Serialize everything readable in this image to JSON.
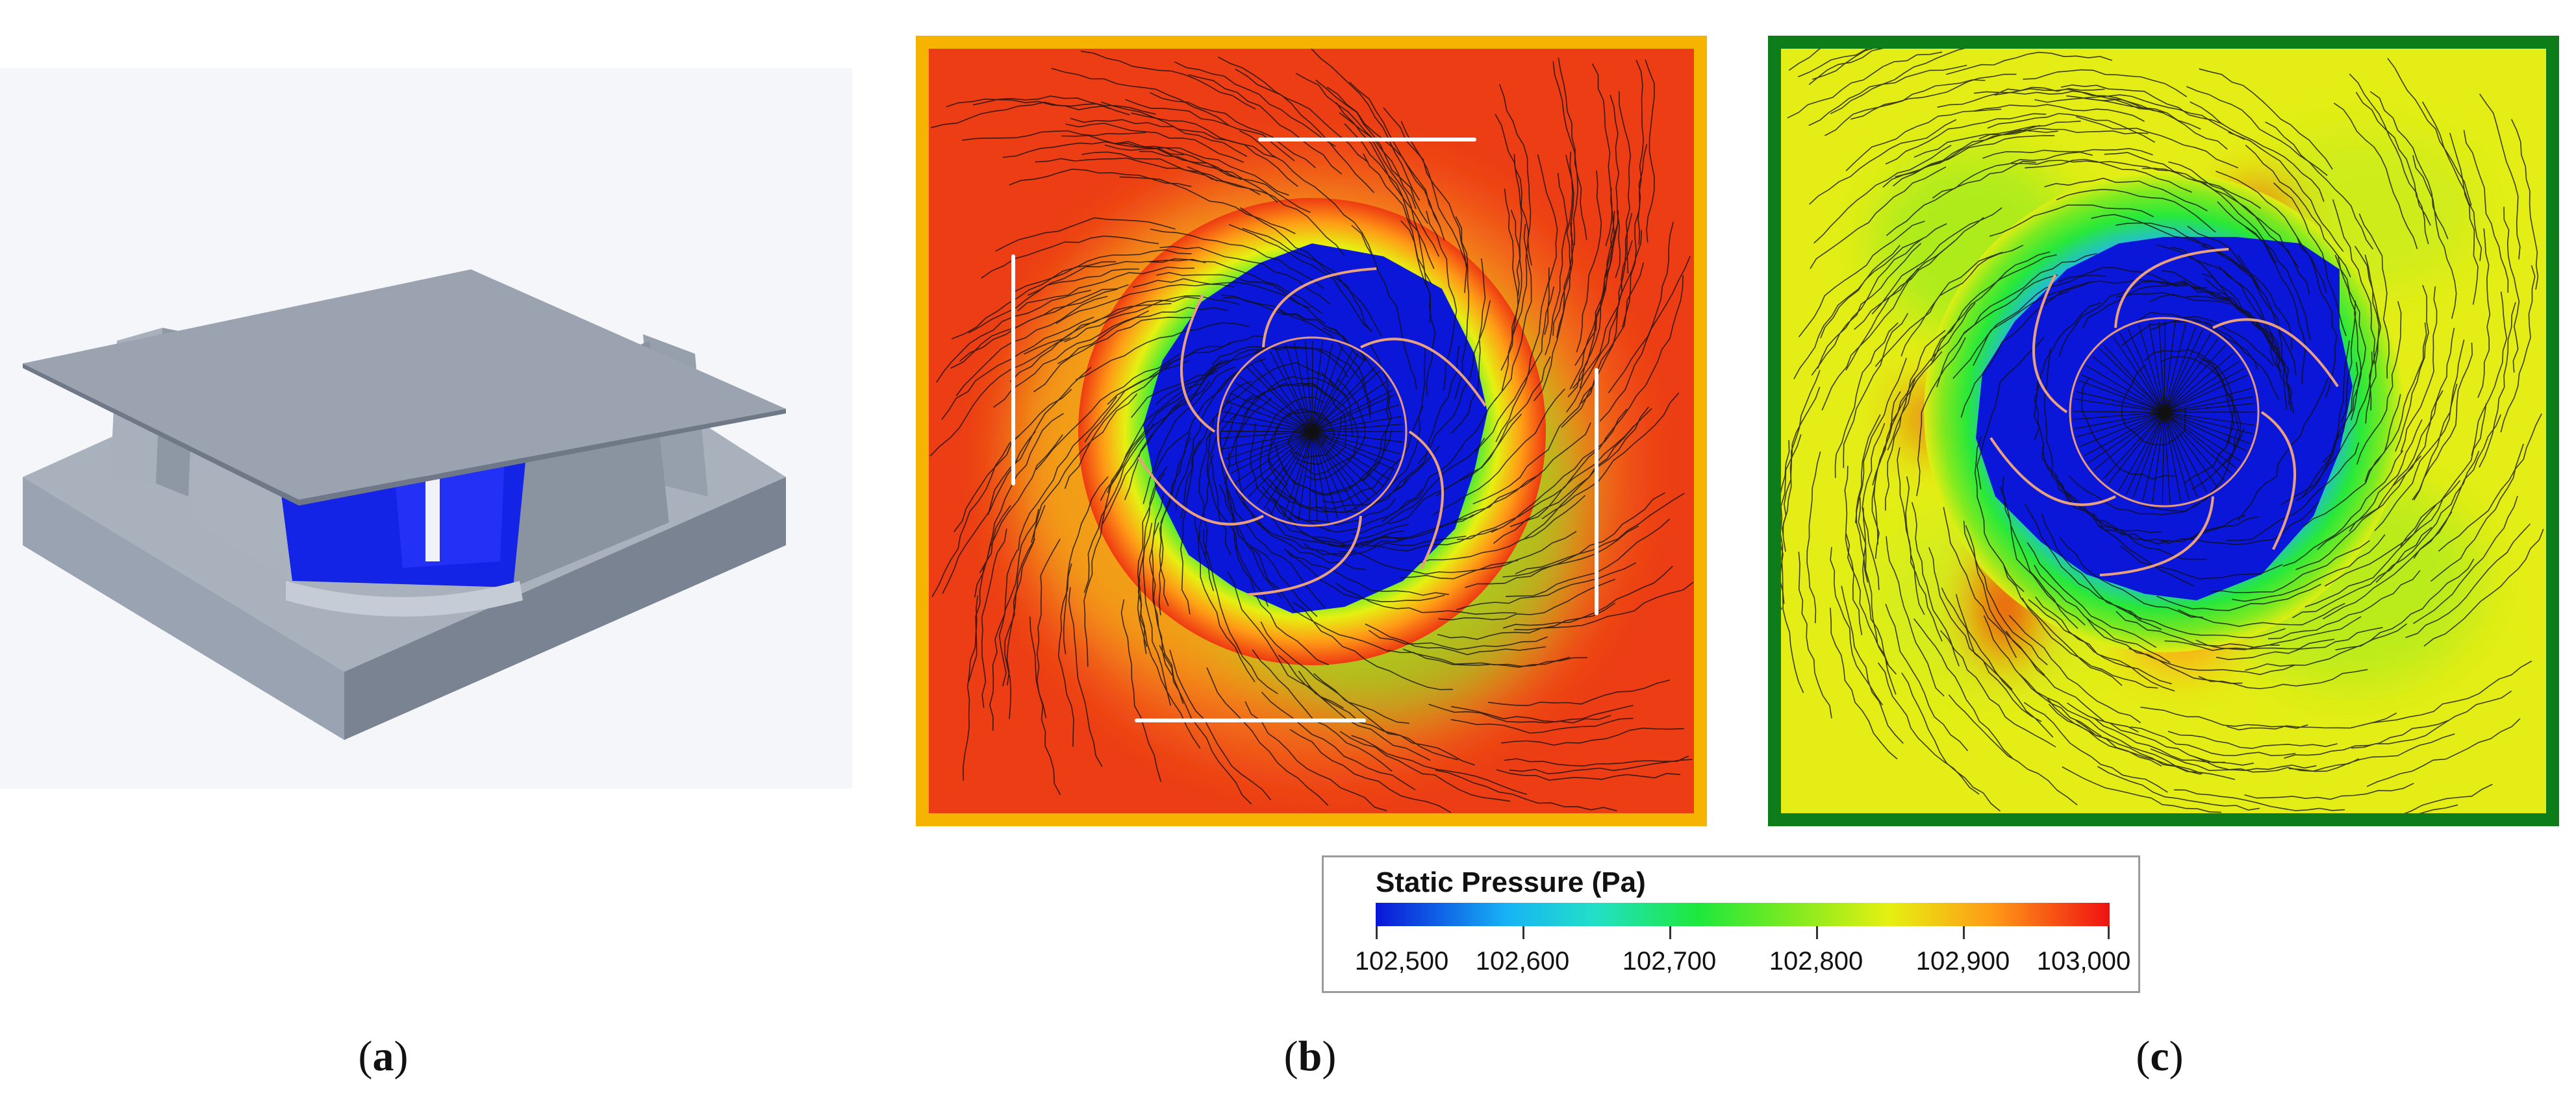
{
  "colorbar": {
    "title": "Static Pressure (Pa)",
    "min": 102500,
    "max": 103000,
    "ticks": [
      "102,500",
      "102,600",
      "102,700",
      "102,800",
      "102,900",
      "103,000"
    ],
    "colors": [
      "#0a16d8",
      "#17b4f5",
      "#22e0c6",
      "#1ee83c",
      "#79ea21",
      "#e6f012",
      "#ff9a16",
      "#f01212"
    ]
  },
  "captions": {
    "a": {
      "open": "(",
      "letter": "a",
      "close": ")"
    },
    "b": {
      "open": "(",
      "letter": "b",
      "close": ")"
    },
    "c": {
      "open": "(",
      "letter": "c",
      "close": ")"
    }
  },
  "panels": {
    "b": {
      "frame_color": "#f6b400",
      "background_pressure": "high (red)"
    },
    "c": {
      "frame_color": "#0c7d18",
      "background_pressure": "medium (yellow)"
    }
  }
}
